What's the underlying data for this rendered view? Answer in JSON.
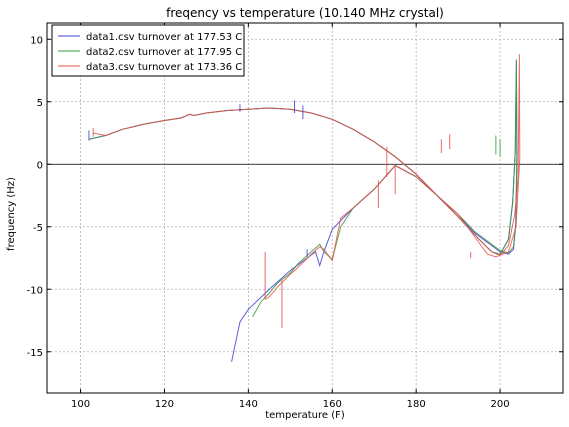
{
  "chart_data": {
    "type": "line",
    "title": "freqency vs temperature (10.140 MHz crystal)",
    "xlabel": "temperature (F)",
    "ylabel": "frequency (Hz)",
    "xlim": [
      92,
      215
    ],
    "ylim": [
      -18.3,
      11.3
    ],
    "xticks": [
      100,
      120,
      140,
      160,
      180,
      200
    ],
    "yticks": [
      10,
      5,
      0,
      -5,
      -10,
      -15
    ],
    "grid": true,
    "legend_position": "top-left",
    "reference_line_y": 0,
    "series": [
      {
        "name": "data1.csv turnover at 177.53 C",
        "color": "#3f3fd6",
        "points": [
          [
            102,
            2.0
          ],
          [
            106,
            2.3
          ],
          [
            110,
            2.8
          ],
          [
            115,
            3.2
          ],
          [
            120,
            3.5
          ],
          [
            124,
            3.7
          ],
          [
            126,
            4.0
          ],
          [
            127,
            3.9
          ],
          [
            130,
            4.1
          ],
          [
            135,
            4.3
          ],
          [
            140,
            4.4
          ],
          [
            145,
            4.5
          ],
          [
            150,
            4.4
          ],
          [
            155,
            4.1
          ],
          [
            160,
            3.6
          ],
          [
            165,
            2.8
          ],
          [
            170,
            1.8
          ],
          [
            175,
            0.6
          ],
          [
            180,
            -0.8
          ],
          [
            185,
            -2.5
          ],
          [
            190,
            -4.2
          ],
          [
            195,
            -6.0
          ],
          [
            198,
            -7.0
          ],
          [
            200,
            -7.2
          ],
          [
            202,
            -6.0
          ],
          [
            203,
            -3.0
          ],
          [
            203.6,
            1.0
          ],
          [
            203.9,
            8.3
          ],
          [
            204.0,
            0.6
          ],
          [
            203.7,
            -5.0
          ],
          [
            203.2,
            -6.8
          ],
          [
            202,
            -7.2
          ],
          [
            200,
            -7.0
          ],
          [
            198,
            -6.5
          ],
          [
            196,
            -6.0
          ],
          [
            194,
            -5.5
          ],
          [
            192,
            -4.8
          ],
          [
            190,
            -4.0
          ],
          [
            185,
            -2.5
          ],
          [
            180,
            -1.0
          ],
          [
            175,
            -0.1
          ],
          [
            170,
            -2.0
          ],
          [
            165,
            -3.5
          ],
          [
            162,
            -4.5
          ],
          [
            160,
            -5.2
          ],
          [
            158,
            -7.0
          ],
          [
            157,
            -8.1
          ],
          [
            156,
            -7.0
          ],
          [
            154,
            -7.5
          ],
          [
            152,
            -8.0
          ],
          [
            150,
            -8.5
          ],
          [
            145,
            -10.0
          ],
          [
            140,
            -11.6
          ],
          [
            138,
            -12.6
          ],
          [
            136,
            -15.8
          ]
        ]
      },
      {
        "name": "data2.csv turnover at 177.95 C",
        "color": "#3a9a3a",
        "points": [
          [
            102,
            2.0
          ],
          [
            106,
            2.3
          ],
          [
            110,
            2.8
          ],
          [
            115,
            3.2
          ],
          [
            120,
            3.5
          ],
          [
            124,
            3.7
          ],
          [
            126,
            4.0
          ],
          [
            127,
            3.9
          ],
          [
            130,
            4.1
          ],
          [
            135,
            4.3
          ],
          [
            140,
            4.4
          ],
          [
            145,
            4.5
          ],
          [
            150,
            4.4
          ],
          [
            155,
            4.1
          ],
          [
            160,
            3.6
          ],
          [
            165,
            2.8
          ],
          [
            170,
            1.8
          ],
          [
            175,
            0.6
          ],
          [
            180,
            -0.8
          ],
          [
            185,
            -2.5
          ],
          [
            190,
            -4.2
          ],
          [
            195,
            -6.0
          ],
          [
            198,
            -7.0
          ],
          [
            200,
            -7.2
          ],
          [
            202,
            -6.0
          ],
          [
            203,
            -3.0
          ],
          [
            203.6,
            1.0
          ],
          [
            203.9,
            8.4
          ],
          [
            204.0,
            0.6
          ],
          [
            203.8,
            -4.5
          ],
          [
            203.2,
            -6.6
          ],
          [
            202,
            -7.1
          ],
          [
            200,
            -6.9
          ],
          [
            198,
            -6.4
          ],
          [
            196,
            -5.9
          ],
          [
            194,
            -5.4
          ],
          [
            192,
            -4.7
          ],
          [
            190,
            -4.0
          ],
          [
            185,
            -2.5
          ],
          [
            180,
            -1.0
          ],
          [
            175,
            -0.1
          ],
          [
            170,
            -2.0
          ],
          [
            165,
            -3.5
          ],
          [
            162,
            -5.0
          ],
          [
            160,
            -7.6
          ],
          [
            158,
            -7.0
          ],
          [
            157,
            -6.4
          ],
          [
            155,
            -7.0
          ],
          [
            152,
            -7.9
          ],
          [
            150,
            -8.7
          ],
          [
            147,
            -9.5
          ],
          [
            145,
            -10.3
          ],
          [
            143,
            -11.0
          ],
          [
            141,
            -12.2
          ]
        ]
      },
      {
        "name": "data3.csv turnover at 173.36 C",
        "color": "#e85050",
        "points": [
          [
            103,
            2.5
          ],
          [
            106,
            2.3
          ],
          [
            110,
            2.8
          ],
          [
            115,
            3.2
          ],
          [
            120,
            3.5
          ],
          [
            124,
            3.7
          ],
          [
            126,
            4.0
          ],
          [
            127,
            3.9
          ],
          [
            130,
            4.1
          ],
          [
            135,
            4.3
          ],
          [
            140,
            4.4
          ],
          [
            145,
            4.5
          ],
          [
            150,
            4.4
          ],
          [
            155,
            4.1
          ],
          [
            160,
            3.6
          ],
          [
            165,
            2.8
          ],
          [
            170,
            1.8
          ],
          [
            175,
            0.6
          ],
          [
            180,
            -0.8
          ],
          [
            185,
            -2.5
          ],
          [
            190,
            -4.2
          ],
          [
            195,
            -6.0
          ],
          [
            198,
            -7.0
          ],
          [
            200,
            -7.3
          ],
          [
            202,
            -6.5
          ],
          [
            203.5,
            -4.0
          ],
          [
            204.3,
            -1.0
          ],
          [
            204.6,
            8.8
          ],
          [
            204.7,
            0.5
          ],
          [
            203.8,
            -5.0
          ],
          [
            202,
            -7.0
          ],
          [
            199,
            -7.4
          ],
          [
            197,
            -7.2
          ],
          [
            195,
            -6.3
          ],
          [
            192,
            -4.9
          ],
          [
            190,
            -4.0
          ],
          [
            185,
            -2.5
          ],
          [
            180,
            -1.0
          ],
          [
            175,
            -0.1
          ],
          [
            170,
            -2.0
          ],
          [
            165,
            -3.5
          ],
          [
            162,
            -4.3
          ],
          [
            160,
            -7.7
          ],
          [
            158,
            -6.8
          ],
          [
            157,
            -6.6
          ],
          [
            155,
            -7.2
          ],
          [
            152,
            -8.2
          ],
          [
            150,
            -8.8
          ],
          [
            147,
            -9.8
          ],
          [
            145,
            -10.6
          ],
          [
            144,
            -10.8
          ]
        ]
      }
    ],
    "spikes": [
      {
        "series": 0,
        "x": 138,
        "y1": 4.2,
        "y2": 4.8
      },
      {
        "series": 0,
        "x": 151,
        "y1": 4.1,
        "y2": 5.1
      },
      {
        "series": 0,
        "x": 153,
        "y1": 3.6,
        "y2": 4.7
      },
      {
        "series": 0,
        "x": 154,
        "y1": -7.4,
        "y2": -6.8
      },
      {
        "series": 0,
        "x": 102,
        "y1": 1.9,
        "y2": 2.7
      },
      {
        "series": 1,
        "x": 199,
        "y1": 0.8,
        "y2": 2.3
      },
      {
        "series": 1,
        "x": 200,
        "y1": 0.6,
        "y2": 2.0
      },
      {
        "series": 2,
        "x": 144,
        "y1": -10.8,
        "y2": -7.0
      },
      {
        "series": 2,
        "x": 148,
        "y1": -13.1,
        "y2": -9.3
      },
      {
        "series": 2,
        "x": 171,
        "y1": -3.5,
        "y2": -1.3
      },
      {
        "series": 2,
        "x": 173,
        "y1": -1.0,
        "y2": 1.4
      },
      {
        "series": 2,
        "x": 175,
        "y1": -2.4,
        "y2": -0.1
      },
      {
        "series": 2,
        "x": 186,
        "y1": 0.9,
        "y2": 2.0
      },
      {
        "series": 2,
        "x": 188,
        "y1": 1.2,
        "y2": 2.4
      },
      {
        "series": 2,
        "x": 103,
        "y1": 2.2,
        "y2": 2.9
      },
      {
        "series": 2,
        "x": 193,
        "y1": -7.5,
        "y2": -7.0
      }
    ]
  }
}
